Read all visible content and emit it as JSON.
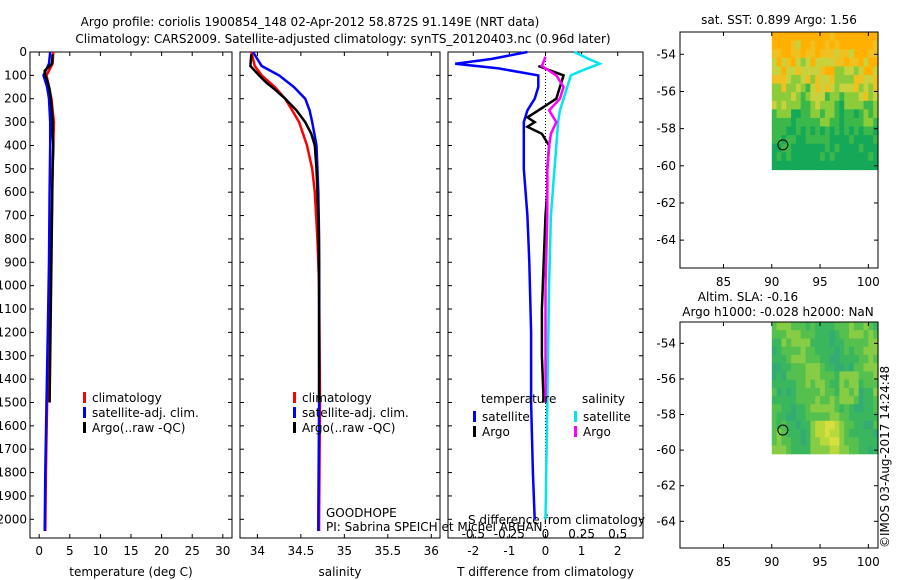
{
  "title_line1": "Argo profile: coriolis 1900854_148 02-Apr-2012 58.872S 91.149E (NRT data)",
  "title_line2": "Climatology: CARS2009. Satellite-adjusted climatology: synTS_20120403.nc (0.96d later)",
  "footer_stamp": "©IMOS 03-Aug-2017 14:24:48",
  "project_label": "GOODHOPE",
  "pi_label": "PI: Sabrina SPEICH et Michel ARHAN",
  "colors": {
    "climatology": "#ff0000",
    "satellite": "#0000ff",
    "argo": "#000000",
    "sat_salinity": "#00e5ee",
    "argo_salinity": "#ff00ff"
  },
  "depth_ticks": [
    0,
    100,
    200,
    300,
    400,
    500,
    600,
    700,
    800,
    900,
    1000,
    1100,
    1200,
    1300,
    1400,
    1500,
    1600,
    1700,
    1800,
    1900,
    2000
  ],
  "chart_data": [
    {
      "type": "line",
      "id": "temperature",
      "xlabel": "temperature (deg C)",
      "xlim": [
        -1.5,
        31.5
      ],
      "ylim": [
        2080,
        0
      ],
      "xticks": [
        0,
        5,
        10,
        15,
        20,
        25,
        30
      ],
      "legend": [
        "climatology",
        "satellite-adj. clim.",
        "Argo(..raw -QC)"
      ],
      "series": [
        {
          "name": "climatology",
          "color": "#ff0000",
          "depth": [
            0,
            50,
            100,
            150,
            200,
            300,
            400,
            500,
            800,
            1000,
            1200,
            1500,
            1800,
            2050
          ],
          "values": [
            2.3,
            2.2,
            1.2,
            1.6,
            2.0,
            2.4,
            2.3,
            2.2,
            2.0,
            1.8,
            1.6,
            1.3,
            1.1,
            1.0
          ]
        },
        {
          "name": "satellite-adj. clim.",
          "color": "#0000ff",
          "depth": [
            0,
            50,
            100,
            150,
            200,
            300,
            400,
            600,
            900,
            1200,
            1500,
            1800,
            2050
          ],
          "values": [
            1.8,
            1.6,
            0.7,
            1.3,
            1.6,
            1.8,
            1.8,
            1.7,
            1.6,
            1.4,
            1.2,
            1.0,
            0.9
          ]
        },
        {
          "name": "Argo(..raw -QC)",
          "color": "#000000",
          "depth": [
            10,
            50,
            80,
            100,
            130,
            160,
            200,
            250,
            300,
            350,
            400,
            500,
            700,
            900,
            1100,
            1300,
            1500
          ],
          "values": [
            2.2,
            2.1,
            0.9,
            1.0,
            1.4,
            1.7,
            1.9,
            2.1,
            2.2,
            2.2,
            2.3,
            2.2,
            2.1,
            2.0,
            1.9,
            1.8,
            1.7
          ]
        }
      ]
    },
    {
      "type": "line",
      "id": "salinity",
      "xlabel": "salinity",
      "xlim": [
        33.8,
        36.1
      ],
      "ylim": [
        2080,
        0
      ],
      "xticks": [
        34,
        34.5,
        35,
        35.5,
        36
      ],
      "legend": [
        "climatology",
        "satellite-adj. clim.",
        "Argo(..raw -QC)"
      ],
      "series": [
        {
          "name": "climatology",
          "color": "#ff0000",
          "depth": [
            0,
            60,
            100,
            150,
            200,
            250,
            300,
            400,
            500,
            600,
            800,
            1000,
            1500,
            2000,
            2050
          ],
          "values": [
            33.93,
            33.97,
            34.05,
            34.2,
            34.32,
            34.4,
            34.48,
            34.57,
            34.63,
            34.66,
            34.69,
            34.71,
            34.72,
            34.71,
            34.71
          ]
        },
        {
          "name": "satellite-adj. clim.",
          "color": "#0000ff",
          "depth": [
            0,
            60,
            100,
            150,
            200,
            250,
            300,
            400,
            600,
            800,
            1000,
            1500,
            2000,
            2050
          ],
          "values": [
            33.95,
            34.05,
            34.25,
            34.42,
            34.55,
            34.6,
            34.63,
            34.68,
            34.7,
            34.71,
            34.71,
            34.71,
            34.7,
            34.7
          ]
        },
        {
          "name": "Argo(..raw -QC)",
          "color": "#000000",
          "depth": [
            10,
            60,
            100,
            130,
            160,
            200,
            250,
            300,
            350,
            400,
            500,
            700,
            900,
            1100,
            1300,
            1500
          ],
          "values": [
            33.93,
            33.92,
            34.02,
            34.1,
            34.2,
            34.32,
            34.45,
            34.55,
            34.62,
            34.66,
            34.68,
            34.7,
            34.71,
            34.71,
            34.71,
            34.71
          ]
        }
      ]
    },
    {
      "type": "line",
      "id": "difference",
      "xlabel": "T difference from climatology",
      "xlabel_top": "S difference from climatology",
      "xlim": [
        -2.7,
        2.7
      ],
      "ylim": [
        2080,
        0
      ],
      "xticks": [
        -2,
        -1,
        0,
        1,
        2
      ],
      "xticks_top_labels": [
        "-0.5",
        "-0.25",
        "0",
        "0.25",
        "0.5"
      ],
      "legend_temperature_title": "temperature",
      "legend_salinity_title": "salinity",
      "legend_entries": [
        {
          "label": "satellite",
          "color": "#0000ff",
          "group": "temperature"
        },
        {
          "label": "Argo",
          "color": "#000000",
          "group": "temperature"
        },
        {
          "label": "satellite",
          "color": "#00e5ee",
          "group": "salinity"
        },
        {
          "label": "Argo",
          "color": "#ff00ff",
          "group": "salinity"
        }
      ],
      "series": [
        {
          "name": "T satellite",
          "color": "#0000ff",
          "depth": [
            0,
            30,
            50,
            70,
            100,
            150,
            200,
            250,
            300,
            400,
            500,
            700,
            900,
            1200,
            1500,
            1800,
            2000
          ],
          "values": [
            -0.5,
            -1.5,
            -2.5,
            -1.3,
            -0.2,
            -0.2,
            -0.3,
            -0.5,
            -0.6,
            -0.6,
            -0.6,
            -0.5,
            -0.45,
            -0.4,
            -0.4,
            -0.35,
            -0.3
          ]
        },
        {
          "name": "T Argo",
          "color": "#000000",
          "depth": [
            60,
            100,
            150,
            200,
            250,
            280,
            300,
            320,
            350,
            400,
            500,
            600,
            700,
            900,
            1100,
            1300,
            1500
          ],
          "values": [
            -0.2,
            0.5,
            0.4,
            0.3,
            -0.2,
            -0.5,
            -0.3,
            -0.5,
            -0.1,
            0.1,
            0.05,
            0.05,
            0.0,
            -0.05,
            -0.1,
            -0.1,
            -0.05
          ]
        },
        {
          "name": "S satellite",
          "color": "#00e5ee",
          "depth": [
            0,
            30,
            50,
            80,
            100,
            150,
            200,
            250,
            300,
            400,
            500,
            700,
            1000,
            1500,
            2000
          ],
          "values": [
            0.8,
            1.2,
            1.5,
            1.0,
            0.7,
            0.6,
            0.5,
            0.4,
            0.35,
            0.3,
            0.25,
            0.15,
            0.1,
            0.05,
            0.0
          ]
        },
        {
          "name": "S Argo",
          "color": "#ff00ff",
          "depth": [
            20,
            60,
            100,
            150,
            200,
            250,
            300,
            350,
            400,
            500,
            700,
            1000,
            1300,
            1500
          ],
          "values": [
            0.0,
            -0.1,
            0.3,
            0.5,
            0.4,
            0.1,
            0.3,
            0.15,
            0.1,
            0.05,
            0.05,
            0.0,
            0.0,
            0.0
          ]
        }
      ]
    },
    {
      "type": "heatmap",
      "id": "sst-map",
      "title": "sat. SST: 0.899 Argo: 1.56",
      "xlim": [
        80.5,
        101
      ],
      "ylim": [
        -65.5,
        -52.8
      ],
      "xticks": [
        85,
        90,
        95,
        100
      ],
      "yticks": [
        -54,
        -56,
        -58,
        -60,
        -62,
        -64
      ],
      "data_extent_lon": [
        90,
        101
      ],
      "data_extent_lat": [
        -60.2,
        -52.8
      ],
      "marker": {
        "lon": 91.149,
        "lat": -58.872
      }
    },
    {
      "type": "heatmap",
      "id": "sla-map",
      "title_line1": "Altim. SLA: -0.16",
      "title_line2": "Argo h1000: -0.028 h2000: NaN",
      "xlim": [
        80.5,
        101
      ],
      "ylim": [
        -65.5,
        -52.8
      ],
      "xticks": [
        85,
        90,
        95,
        100
      ],
      "yticks": [
        -54,
        -56,
        -58,
        -60,
        -62,
        -64
      ],
      "data_extent_lon": [
        90,
        101
      ],
      "data_extent_lat": [
        -60.2,
        -52.8
      ],
      "marker": {
        "lon": 91.149,
        "lat": -58.872
      }
    }
  ]
}
